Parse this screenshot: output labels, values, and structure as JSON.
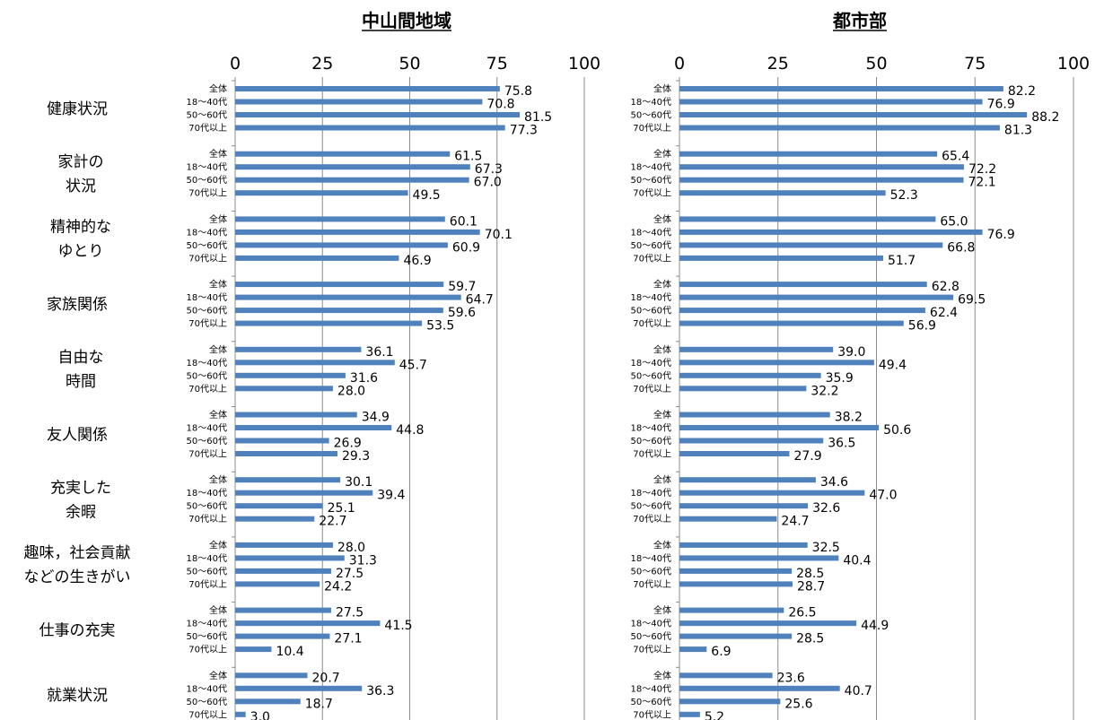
{
  "row_labels": [
    [
      "健康状況"
    ],
    [
      "家計の",
      "状況"
    ],
    [
      "精神的な",
      "ゆとり"
    ],
    [
      "家族関係"
    ],
    [
      "自由な",
      "時間"
    ],
    [
      "友人関係"
    ],
    [
      "充実した",
      "余暇"
    ],
    [
      "趣味，社会貢献",
      "などの生きがい"
    ],
    [
      "仕事の充実"
    ],
    [
      "就業状況"
    ]
  ],
  "age_groups": [
    "全体",
    "18～40代",
    "50～60代",
    "70代以上"
  ],
  "chart_data": [
    {
      "type": "bar",
      "orientation": "horizontal",
      "title": "中山間地域",
      "xlim": [
        0,
        100
      ],
      "xticks": [
        0,
        25,
        50,
        75,
        100
      ],
      "bar_color": "#4f81bd",
      "values": [
        [
          75.8,
          70.8,
          81.5,
          77.3
        ],
        [
          61.5,
          67.3,
          67.0,
          49.5
        ],
        [
          60.1,
          70.1,
          60.9,
          46.9
        ],
        [
          59.7,
          64.7,
          59.6,
          53.5
        ],
        [
          36.1,
          45.7,
          31.6,
          28.0
        ],
        [
          34.9,
          44.8,
          26.9,
          29.3
        ],
        [
          30.1,
          39.4,
          25.1,
          22.7
        ],
        [
          28.0,
          31.3,
          27.5,
          24.2
        ],
        [
          27.5,
          41.5,
          27.1,
          10.4
        ],
        [
          20.7,
          36.3,
          18.7,
          3.0
        ]
      ]
    },
    {
      "type": "bar",
      "orientation": "horizontal",
      "title": "都市部",
      "xlim": [
        0,
        100
      ],
      "xticks": [
        0,
        25,
        50,
        75,
        100
      ],
      "bar_color": "#4f81bd",
      "values": [
        [
          82.2,
          76.9,
          88.2,
          81.3
        ],
        [
          65.4,
          72.2,
          72.1,
          52.3
        ],
        [
          65.0,
          76.9,
          66.8,
          51.7
        ],
        [
          62.8,
          69.5,
          62.4,
          56.9
        ],
        [
          39.0,
          49.4,
          35.9,
          32.2
        ],
        [
          38.2,
          50.6,
          36.5,
          27.9
        ],
        [
          34.6,
          47.0,
          32.6,
          24.7
        ],
        [
          32.5,
          40.4,
          28.5,
          28.7
        ],
        [
          26.5,
          44.9,
          28.5,
          6.9
        ],
        [
          23.6,
          40.7,
          25.6,
          5.2
        ]
      ]
    }
  ]
}
